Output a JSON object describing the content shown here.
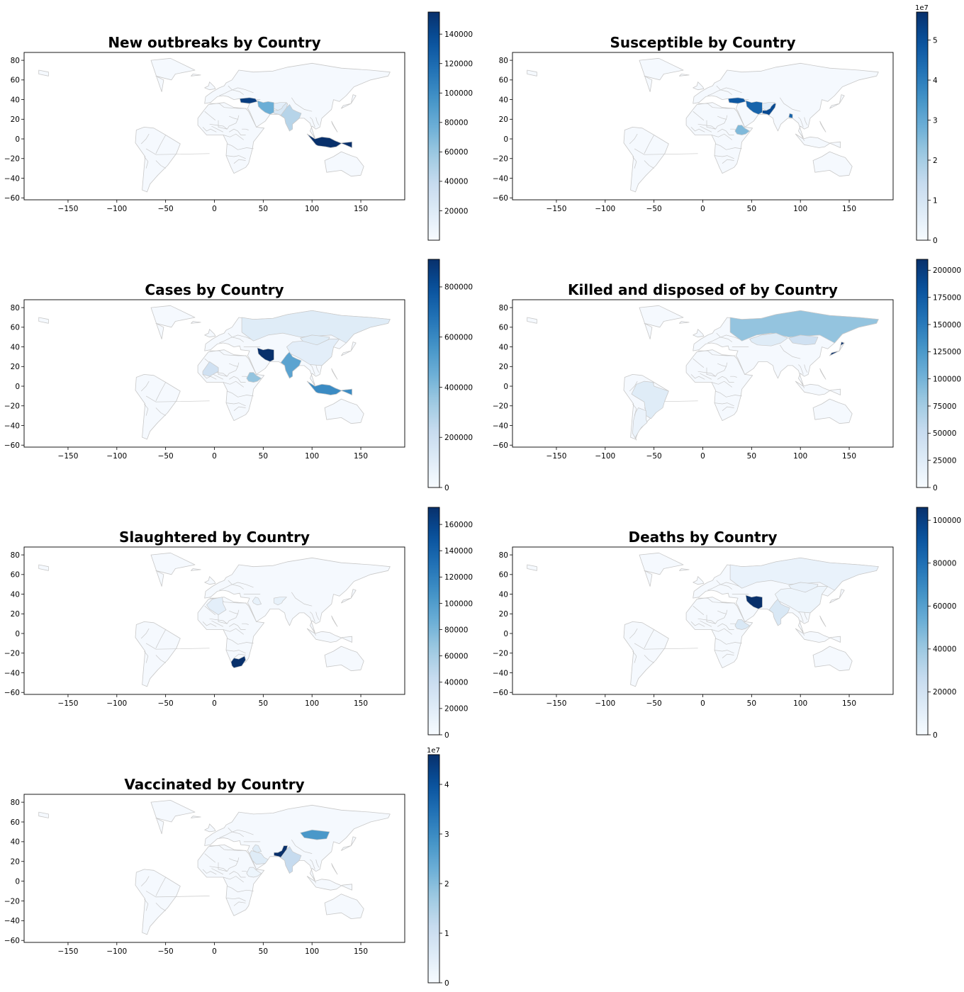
{
  "colormap": [
    "#f7fbff",
    "#deebf7",
    "#c6dbef",
    "#9ecae1",
    "#6baed6",
    "#4292c6",
    "#2171b5",
    "#08519c",
    "#08306b"
  ],
  "land_base_color": "#f5f9fe",
  "border_color": "#c8c8c8",
  "x_ticks": [
    -150,
    -100,
    -50,
    0,
    50,
    100,
    150
  ],
  "y_ticks": [
    -60,
    -40,
    -20,
    0,
    20,
    40,
    60,
    80
  ],
  "xlim": [
    -195,
    195
  ],
  "ylim": [
    -62,
    88
  ],
  "chart_data": [
    {
      "type": "choropleth",
      "title": "New outbreaks by Country",
      "colorbar": {
        "min": 0,
        "max": 155000,
        "ticks": [
          "20000",
          "40000",
          "60000",
          "80000",
          "100000",
          "120000",
          "140000"
        ],
        "exponent": ""
      },
      "regions": [
        {
          "name": "Indonesia",
          "level": 1.0
        },
        {
          "name": "Turkey",
          "level": 0.95
        },
        {
          "name": "Iran",
          "level": 0.5
        },
        {
          "name": "India",
          "level": 0.3
        },
        {
          "name": "Pakistan",
          "level": 0.15
        },
        {
          "name": "Afghanistan",
          "level": 0.1
        }
      ]
    },
    {
      "type": "choropleth",
      "title": "Susceptible by Country",
      "colorbar": {
        "min": 0,
        "max": 5.7,
        "ticks": [
          "0",
          "1",
          "2",
          "3",
          "4",
          "5"
        ],
        "exponent": "1e7"
      },
      "regions": [
        {
          "name": "Turkey",
          "level": 0.85
        },
        {
          "name": "Iran",
          "level": 0.8
        },
        {
          "name": "Pakistan",
          "level": 0.9
        },
        {
          "name": "Bangladesh",
          "level": 0.8
        },
        {
          "name": "Ethiopia",
          "level": 0.45
        },
        {
          "name": "Afghanistan",
          "level": 0.1
        }
      ]
    },
    {
      "type": "choropleth",
      "title": "Cases by Country",
      "colorbar": {
        "min": 0,
        "max": 910000,
        "ticks": [
          "0",
          "200000",
          "400000",
          "600000",
          "800000"
        ],
        "exponent": ""
      },
      "regions": [
        {
          "name": "Iran",
          "level": 1.0
        },
        {
          "name": "India",
          "level": 0.55
        },
        {
          "name": "Indonesia",
          "level": 0.65
        },
        {
          "name": "Ethiopia",
          "level": 0.4
        },
        {
          "name": "Russia",
          "level": 0.12
        },
        {
          "name": "Mongolia",
          "level": 0.12
        },
        {
          "name": "China",
          "level": 0.1
        },
        {
          "name": "Mali",
          "level": 0.2
        }
      ]
    },
    {
      "type": "choropleth",
      "title": "Killed and disposed of by Country",
      "colorbar": {
        "min": 0,
        "max": 210000,
        "ticks": [
          "0",
          "25000",
          "50000",
          "75000",
          "100000",
          "125000",
          "150000",
          "175000",
          "200000"
        ],
        "exponent": ""
      },
      "regions": [
        {
          "name": "Japan",
          "level": 1.0
        },
        {
          "name": "Russia",
          "level": 0.4
        },
        {
          "name": "Mongolia",
          "level": 0.2
        },
        {
          "name": "Brazil",
          "level": 0.12
        },
        {
          "name": "Kazakhstan",
          "level": 0.12
        },
        {
          "name": "Argentina",
          "level": 0.06
        }
      ]
    },
    {
      "type": "choropleth",
      "title": "Slaughtered by Country",
      "colorbar": {
        "min": 0,
        "max": 173000,
        "ticks": [
          "0",
          "20000",
          "40000",
          "60000",
          "80000",
          "100000",
          "120000",
          "140000",
          "160000"
        ],
        "exponent": ""
      },
      "regions": [
        {
          "name": "South Africa",
          "level": 1.0
        },
        {
          "name": "Algeria",
          "level": 0.1
        },
        {
          "name": "Iraq",
          "level": 0.08
        },
        {
          "name": "Afghanistan",
          "level": 0.08
        }
      ]
    },
    {
      "type": "choropleth",
      "title": "Deaths by Country",
      "colorbar": {
        "min": 0,
        "max": 106000,
        "ticks": [
          "0",
          "20000",
          "40000",
          "60000",
          "80000",
          "100000"
        ],
        "exponent": ""
      },
      "regions": [
        {
          "name": "Iran",
          "level": 1.0
        },
        {
          "name": "India",
          "level": 0.15
        },
        {
          "name": "Ethiopia",
          "level": 0.15
        },
        {
          "name": "Russia",
          "level": 0.07
        },
        {
          "name": "Mongolia",
          "level": 0.07
        },
        {
          "name": "China",
          "level": 0.05
        }
      ]
    },
    {
      "type": "choropleth",
      "title": "Vaccinated by Country",
      "colorbar": {
        "min": 0,
        "max": 4.6,
        "ticks": [
          "0",
          "1",
          "2",
          "3",
          "4"
        ],
        "exponent": "1e7"
      },
      "regions": [
        {
          "name": "Pakistan",
          "level": 1.0
        },
        {
          "name": "Mongolia",
          "level": 0.6
        },
        {
          "name": "India",
          "level": 0.25
        },
        {
          "name": "Saudi Arabia",
          "level": 0.12
        },
        {
          "name": "Iraq",
          "level": 0.12
        },
        {
          "name": "Ethiopia",
          "level": 0.05
        }
      ]
    }
  ]
}
